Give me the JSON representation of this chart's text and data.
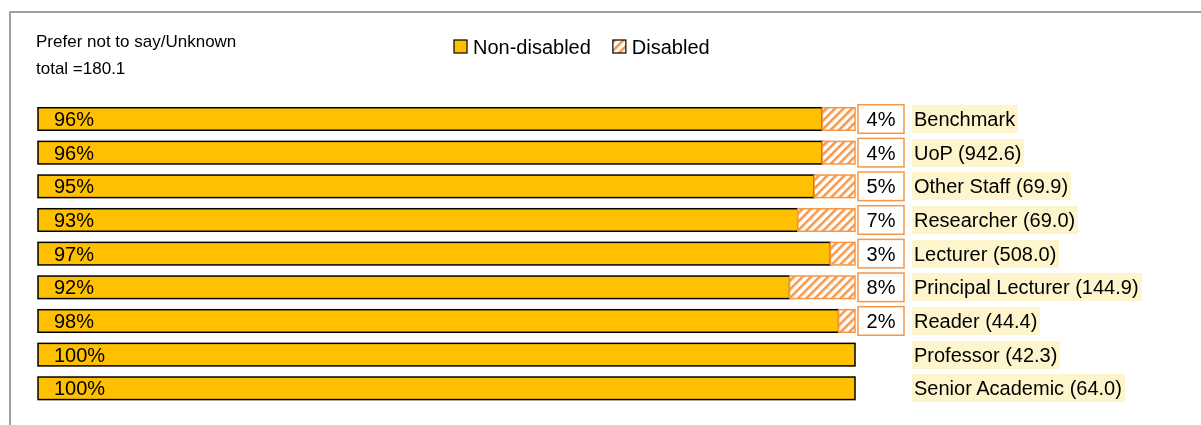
{
  "chart_data": {
    "type": "bar",
    "orientation": "horizontal",
    "stacked": true,
    "legend": "top",
    "annotations": [
      "Prefer not to say/Unknown",
      "total =180.1"
    ],
    "categories": [
      "Benchmark",
      "UoP (942.6)",
      "Other Staff (69.9)",
      "Researcher (69.0)",
      "Lecturer (508.0)",
      "Principal Lecturer (144.9)",
      "Reader (44.4)",
      "Professor (42.3)",
      "Senior Academic (64.0)"
    ],
    "xlim": [
      0,
      100
    ],
    "series": [
      {
        "name": "Non-disabled",
        "color": "#ffc000",
        "values": [
          96,
          96,
          95,
          93,
          97,
          92,
          98,
          100,
          100
        ],
        "value_labels": [
          "96%",
          "96%",
          "95%",
          "93%",
          "97%",
          "92%",
          "98%",
          "100%",
          "100%"
        ]
      },
      {
        "name": "Disabled",
        "color": "#f79646",
        "values": [
          4,
          4,
          5,
          7,
          3,
          8,
          2,
          0,
          0
        ],
        "value_labels": [
          "4%",
          "4%",
          "5%",
          "7%",
          "3%",
          "8%",
          "2%",
          null,
          null
        ]
      }
    ]
  }
}
